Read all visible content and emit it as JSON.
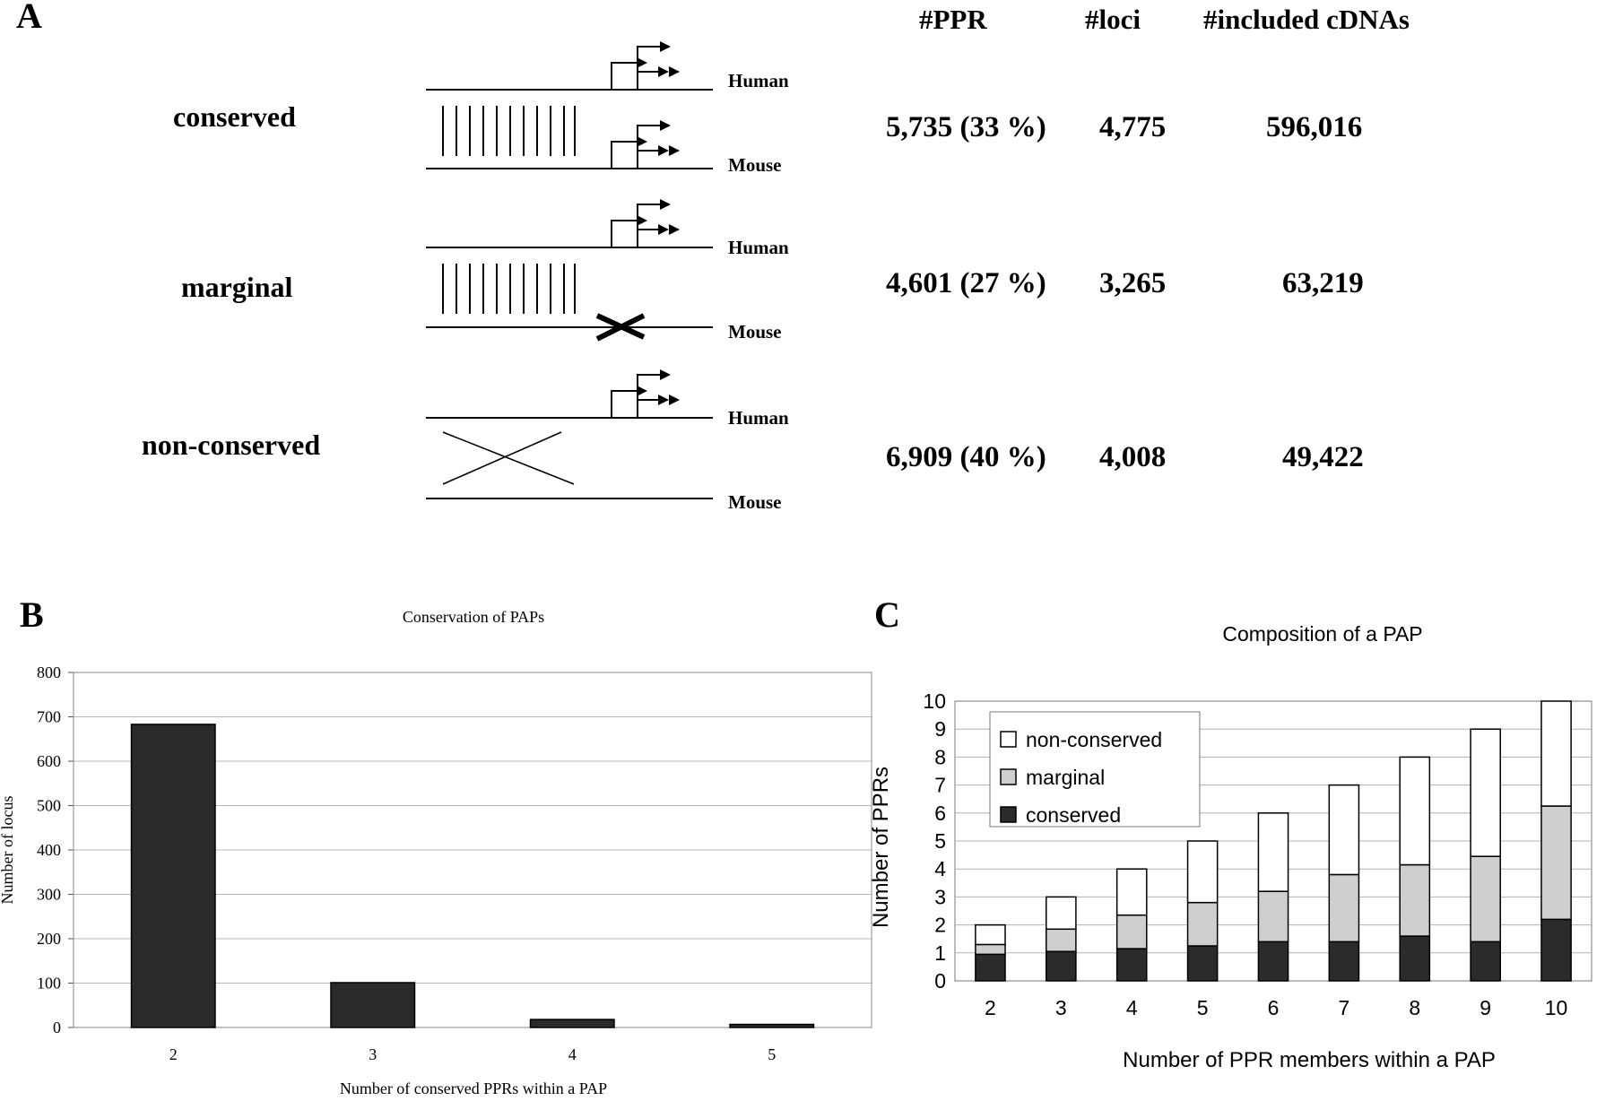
{
  "panel_a": {
    "letter": "A",
    "headers": {
      "ppr": "#PPR",
      "loci": "#loci",
      "cdnas": "#included cDNAs"
    },
    "rows": [
      {
        "label": "conserved",
        "ppr": "5,735 (33 %)",
        "loci": "4,775",
        "cdnas": "596,016",
        "top_species": "Human",
        "bottom_species": "Mouse"
      },
      {
        "label": "marginal",
        "ppr": "4,601 (27 %)",
        "loci": "3,265",
        "cdnas": "63,219",
        "top_species": "Human",
        "bottom_species": "Mouse"
      },
      {
        "label": "non-conserved",
        "ppr": "6,909 (40 %)",
        "loci": "4,008",
        "cdnas": "49,422",
        "top_species": "Human",
        "bottom_species": "Mouse"
      }
    ]
  },
  "chart_data": [
    {
      "panel": "B",
      "type": "bar",
      "title": "Conservation of PAPs",
      "xlabel": "Number of conserved PPRs within a PAP",
      "ylabel": "Number of locus",
      "categories": [
        "2",
        "3",
        "4",
        "5"
      ],
      "values": [
        683,
        101,
        18,
        7
      ],
      "ylim": [
        0,
        800
      ],
      "yticks": [
        0,
        100,
        200,
        300,
        400,
        500,
        600,
        700,
        800
      ],
      "grid": true,
      "colors": {
        "bar": "#2a2a2a",
        "grid": "#b8b8b8"
      }
    },
    {
      "panel": "C",
      "type": "bar",
      "stacked": true,
      "title": "Composition of a PAP",
      "xlabel": "Number of PPR members within a PAP",
      "ylabel": "Number of PPRs",
      "categories": [
        "2",
        "3",
        "4",
        "5",
        "6",
        "7",
        "8",
        "9",
        "10"
      ],
      "series": [
        {
          "name": "conserved",
          "color": "#2b2b2b",
          "values": [
            0.95,
            1.05,
            1.15,
            1.25,
            1.4,
            1.4,
            1.6,
            1.4,
            2.2
          ]
        },
        {
          "name": "marginal",
          "color": "#cfcfcf",
          "values": [
            0.35,
            0.8,
            1.2,
            1.55,
            1.8,
            2.4,
            2.55,
            3.05,
            4.05
          ]
        },
        {
          "name": "non-conserved",
          "color": "#ffffff",
          "values": [
            0.7,
            1.15,
            1.65,
            2.2,
            2.8,
            3.2,
            3.85,
            4.55,
            3.75
          ]
        }
      ],
      "legend_order": [
        "non-conserved",
        "marginal",
        "conserved"
      ],
      "legend_position": "top-left",
      "ylim": [
        0,
        10
      ],
      "yticks": [
        0,
        1,
        2,
        3,
        4,
        5,
        6,
        7,
        8,
        9,
        10
      ],
      "grid": true
    }
  ]
}
